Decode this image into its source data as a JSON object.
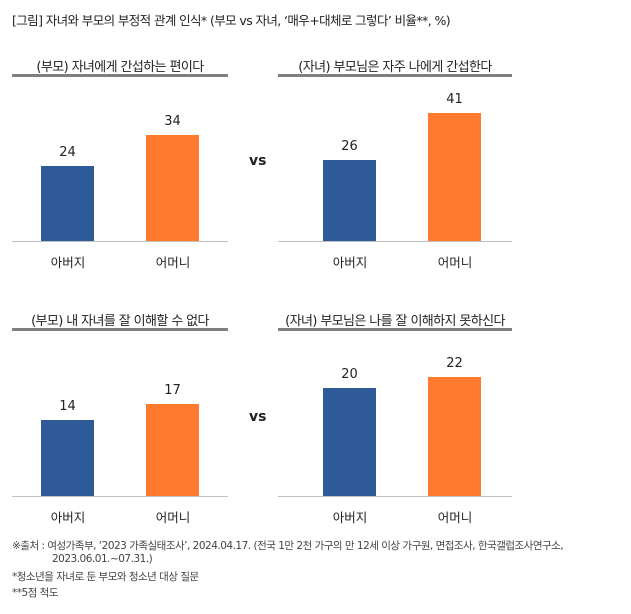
{
  "title": "[그림] 자녀와 부모의 부정적 관계 인식* (부모 vs 자녀, ‘매우+대체로 그렇다’ 비율**, %)",
  "vs_label": "vs",
  "colors": {
    "father": "#2E5A9A",
    "mother": "#FF7A2F"
  },
  "chart_data": [
    {
      "type": "bar",
      "title": "(부모) 자녀에게 간섭하는 편이다",
      "categories": [
        "아버지",
        "어머니"
      ],
      "values": [
        24,
        34
      ],
      "ylim": [
        0,
        50
      ]
    },
    {
      "type": "bar",
      "title": "(자녀) 부모님은 자주 나에게 간섭한다",
      "categories": [
        "아버지",
        "어머니"
      ],
      "values": [
        26,
        41
      ],
      "ylim": [
        0,
        50
      ]
    },
    {
      "type": "bar",
      "title": "(부모) 내 자녀를 잘 이해할 수 없다",
      "categories": [
        "아버지",
        "어머니"
      ],
      "values": [
        14,
        17
      ],
      "ylim": [
        0,
        30
      ]
    },
    {
      "type": "bar",
      "title": "(자녀) 부모님은 나를 잘 이해하지 못하신다",
      "categories": [
        "아버지",
        "어머니"
      ],
      "values": [
        20,
        22
      ],
      "ylim": [
        0,
        30
      ]
    }
  ],
  "notes": {
    "source_line1": "※출처 : 여성가족부, ‘2023 가족실태조사’, 2024.04.17. (전국 1만 2천 가구의 만 12세 이상 가구원, 면접조사, 한국갤럽조사연구소,",
    "source_line2": "2023.06.01.~07.31.)",
    "note1": "*청소년을 자녀로 둔 부모와 청소년 대상 질문",
    "note2": "**5점 척도"
  }
}
